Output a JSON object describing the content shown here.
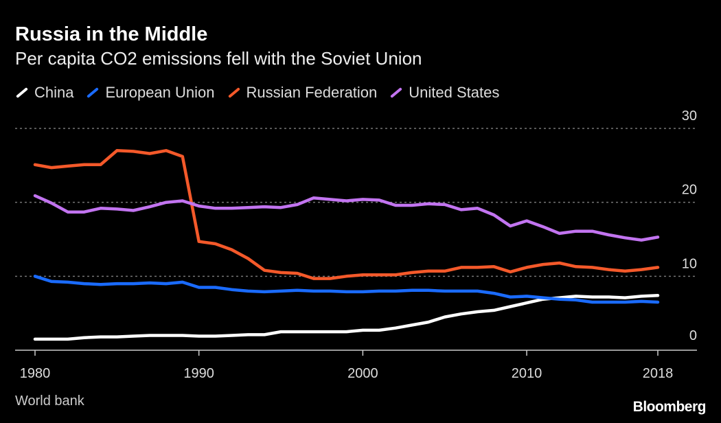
{
  "chart_data": {
    "type": "line",
    "title": "Russia in the Middle",
    "subtitle": "Per capita CO2 emissions fell with the Soviet Union",
    "xlabel": "",
    "ylabel": "",
    "ylim": [
      0,
      30
    ],
    "xlim": [
      1980,
      2018
    ],
    "yticks": [
      0,
      10,
      20,
      30
    ],
    "xticks": [
      1980,
      1990,
      2000,
      2010,
      2018
    ],
    "grid": true,
    "legend_placement": "top-left",
    "x": [
      1980,
      1981,
      1982,
      1983,
      1984,
      1985,
      1986,
      1987,
      1988,
      1989,
      1990,
      1991,
      1992,
      1993,
      1994,
      1995,
      1996,
      1997,
      1998,
      1999,
      2000,
      2001,
      2002,
      2003,
      2004,
      2005,
      2006,
      2007,
      2008,
      2009,
      2010,
      2011,
      2012,
      2013,
      2014,
      2015,
      2016,
      2017,
      2018
    ],
    "series": [
      {
        "name": "China",
        "color": "#ffffff",
        "values": [
          1.5,
          1.5,
          1.5,
          1.7,
          1.8,
          1.8,
          1.9,
          2.0,
          2.0,
          2.0,
          1.9,
          1.9,
          2.0,
          2.1,
          2.1,
          2.5,
          2.5,
          2.5,
          2.5,
          2.5,
          2.7,
          2.7,
          3.0,
          3.4,
          3.8,
          4.5,
          4.9,
          5.2,
          5.4,
          5.9,
          6.4,
          6.9,
          7.1,
          7.3,
          7.2,
          7.2,
          7.1,
          7.3,
          7.4
        ]
      },
      {
        "name": "European Union",
        "color": "#1a6bff",
        "values": [
          10.0,
          9.3,
          9.2,
          9.0,
          8.9,
          9.0,
          9.0,
          9.1,
          9.0,
          9.2,
          8.5,
          8.5,
          8.2,
          8.0,
          7.9,
          8.0,
          8.1,
          8.0,
          8.0,
          7.9,
          7.9,
          8.0,
          8.0,
          8.1,
          8.1,
          8.0,
          8.0,
          8.0,
          7.7,
          7.2,
          7.3,
          7.1,
          6.9,
          6.8,
          6.5,
          6.5,
          6.5,
          6.6,
          6.5
        ]
      },
      {
        "name": "Russian Federation",
        "color": "#f4592a",
        "values": [
          25.1,
          24.7,
          24.9,
          25.1,
          25.1,
          27.0,
          26.9,
          26.6,
          27.0,
          26.2,
          14.7,
          14.4,
          13.6,
          12.4,
          10.8,
          10.5,
          10.4,
          9.7,
          9.7,
          10.0,
          10.2,
          10.2,
          10.2,
          10.5,
          10.7,
          10.7,
          11.2,
          11.2,
          11.3,
          10.6,
          11.2,
          11.6,
          11.8,
          11.3,
          11.2,
          10.9,
          10.7,
          10.9,
          11.2
        ]
      },
      {
        "name": "United States",
        "color": "#c274f0",
        "values": [
          20.9,
          19.9,
          18.7,
          18.7,
          19.2,
          19.1,
          18.9,
          19.4,
          20.0,
          20.2,
          19.5,
          19.2,
          19.2,
          19.3,
          19.4,
          19.3,
          19.7,
          20.6,
          20.4,
          20.2,
          20.4,
          20.3,
          19.6,
          19.6,
          19.8,
          19.7,
          19.0,
          19.2,
          18.3,
          16.8,
          17.5,
          16.7,
          15.8,
          16.1,
          16.1,
          15.6,
          15.2,
          14.9,
          15.3
        ]
      }
    ]
  },
  "footer": {
    "source": "World bank",
    "brand": "Bloomberg"
  }
}
